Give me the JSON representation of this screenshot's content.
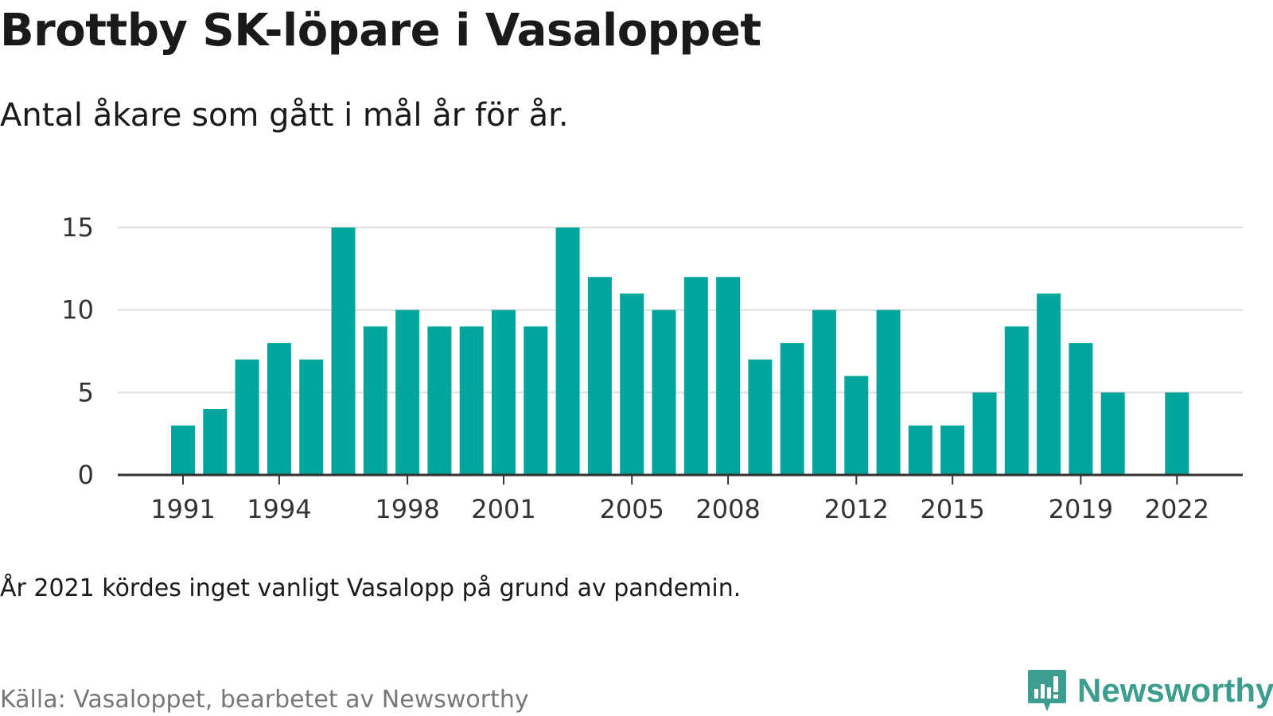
{
  "title": "Brottby SK-löpare i Vasaloppet",
  "subtitle": "Antal åkare som gått i mål år för år.",
  "note": "År 2021 kördes inget vanligt Vasalopp på grund av pandemin.",
  "source": "Källa: Vasaloppet, bearbetet av Newsworthy",
  "logo": {
    "text": "Newsworthy",
    "icon": "bar-chart-speech-icon"
  },
  "colors": {
    "bar": "#00a59b",
    "grid": "#dddddd",
    "axis": "#333333",
    "brand": "#3d9e8f"
  },
  "chart_data": {
    "type": "bar",
    "title": "",
    "xlabel": "",
    "ylabel": "",
    "categories": [
      1991,
      1992,
      1993,
      1994,
      1995,
      1996,
      1997,
      1998,
      1999,
      2000,
      2001,
      2002,
      2003,
      2004,
      2005,
      2006,
      2007,
      2008,
      2009,
      2010,
      2011,
      2012,
      2013,
      2014,
      2015,
      2016,
      2017,
      2018,
      2019,
      2020,
      2021,
      2022
    ],
    "values": [
      3,
      4,
      7,
      8,
      7,
      15,
      9,
      10,
      9,
      9,
      10,
      9,
      15,
      12,
      11,
      10,
      12,
      12,
      7,
      8,
      10,
      6,
      10,
      3,
      3,
      5,
      9,
      11,
      8,
      5,
      null,
      5
    ],
    "ylim": [
      0,
      15
    ],
    "yticks": [
      0,
      5,
      10,
      15
    ],
    "xticks": [
      1991,
      1994,
      1998,
      2001,
      2005,
      2008,
      2012,
      2015,
      2019,
      2022
    ],
    "grid": true,
    "legend": "none"
  }
}
